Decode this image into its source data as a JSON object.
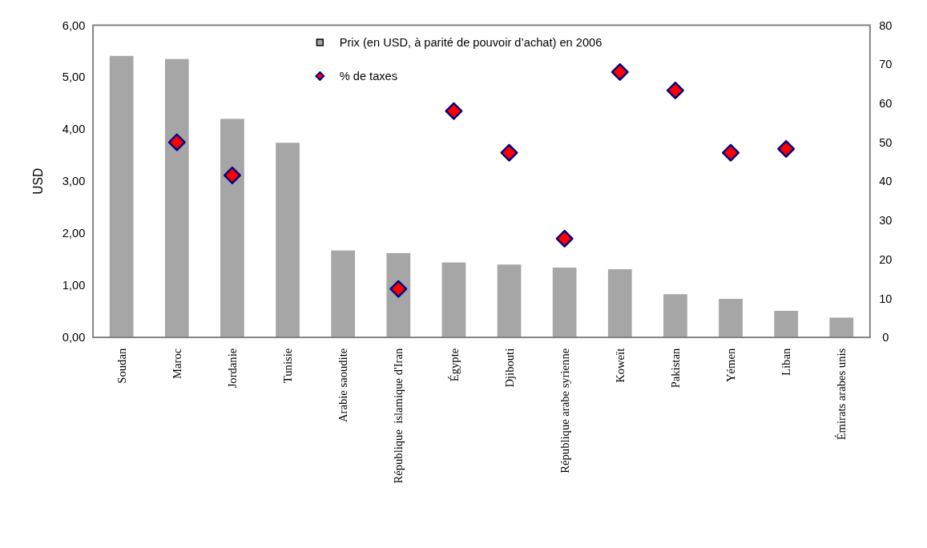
{
  "chart_data": {
    "type": "bar",
    "ylabel": "USD",
    "categories": [
      "Soudan",
      "Maroc",
      "Jordanie",
      "Tunisie",
      "Arabie saoudite",
      "République  islamique d'Iran",
      "Égypte",
      "Djibouti",
      "République arabe syrienne",
      "Koweït",
      "Pakistan",
      "Yémen",
      "Liban",
      "Émirats arabes unis"
    ],
    "series": [
      {
        "name": "Prix (en USD, à parité de pouvoir d’achat) en 2006",
        "color": "#a6a6a6",
        "values": [
          5.41,
          5.35,
          4.2,
          3.74,
          1.67,
          1.62,
          1.44,
          1.4,
          1.34,
          1.31,
          0.83,
          0.74,
          0.51,
          0.38
        ]
      },
      {
        "name": "% de taxes",
        "type": "scatter",
        "axis": "y2",
        "color": "#ff0000",
        "marker": "diamond",
        "values": [
          null,
          50,
          41.5,
          null,
          null,
          12.4,
          58,
          47.3,
          25.3,
          68,
          63.3,
          47.3,
          48.3,
          null
        ]
      }
    ],
    "ylim": [
      0,
      6
    ],
    "yticks": [
      {
        "value": 0,
        "label": "0,00"
      },
      {
        "value": 1,
        "label": "1,00"
      },
      {
        "value": 2,
        "label": "2,00"
      },
      {
        "value": 3,
        "label": "3,00"
      },
      {
        "value": 4,
        "label": "4,00"
      },
      {
        "value": 5,
        "label": "5,00"
      },
      {
        "value": 6,
        "label": "6,00"
      }
    ],
    "y2lim": [
      0,
      80
    ],
    "y2ticks": [
      0,
      10,
      20,
      30,
      40,
      50,
      60,
      70,
      80
    ],
    "legend": "top",
    "grid": false
  }
}
